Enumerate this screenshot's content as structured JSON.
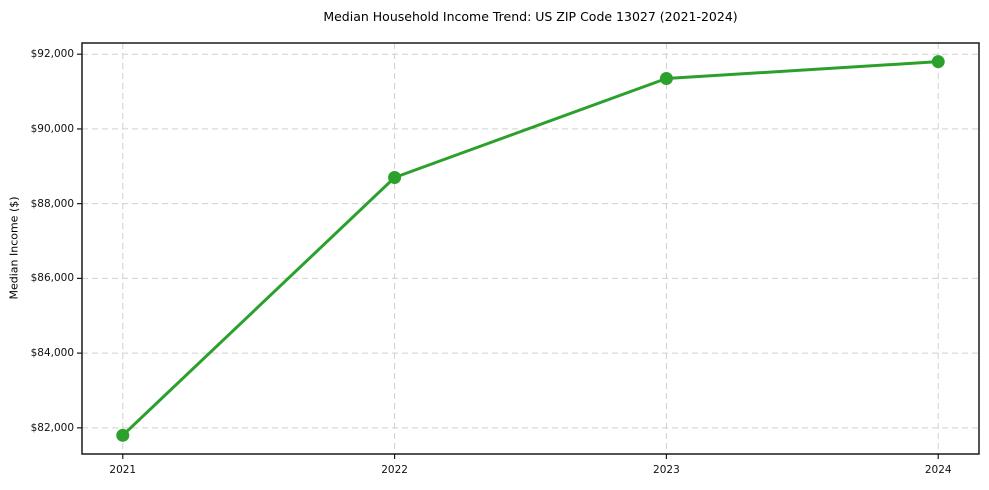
{
  "chart_data": {
    "type": "line",
    "title": "Median Household Income Trend: US ZIP Code 13027 (2021-2024)",
    "xlabel": "",
    "ylabel": "Median Income ($)",
    "x": [
      2021,
      2022,
      2023,
      2024
    ],
    "x_tick_labels": [
      "2021",
      "2022",
      "2023",
      "2024"
    ],
    "series": [
      {
        "name": "Median Household Income",
        "values": [
          81800,
          88700,
          91350,
          91800
        ]
      }
    ],
    "y_ticks": [
      {
        "value": 82000,
        "label": "$82,000"
      },
      {
        "value": 84000,
        "label": "$84,000"
      },
      {
        "value": 86000,
        "label": "$86,000"
      },
      {
        "value": 88000,
        "label": "$88,000"
      },
      {
        "value": 90000,
        "label": "$90,000"
      },
      {
        "value": 92000,
        "label": "$92,000"
      }
    ],
    "xlim": [
      2020.85,
      2024.15
    ],
    "ylim": [
      81300,
      92300
    ],
    "grid": true,
    "grid_style": "dashed",
    "legend_position": "none",
    "colors": {
      "line": "#2ca02c",
      "marker": "#2ca02c",
      "grid": "#d0d0d0",
      "spine": "#1a1a1a",
      "background": "#ffffff",
      "text": "#000000"
    }
  }
}
